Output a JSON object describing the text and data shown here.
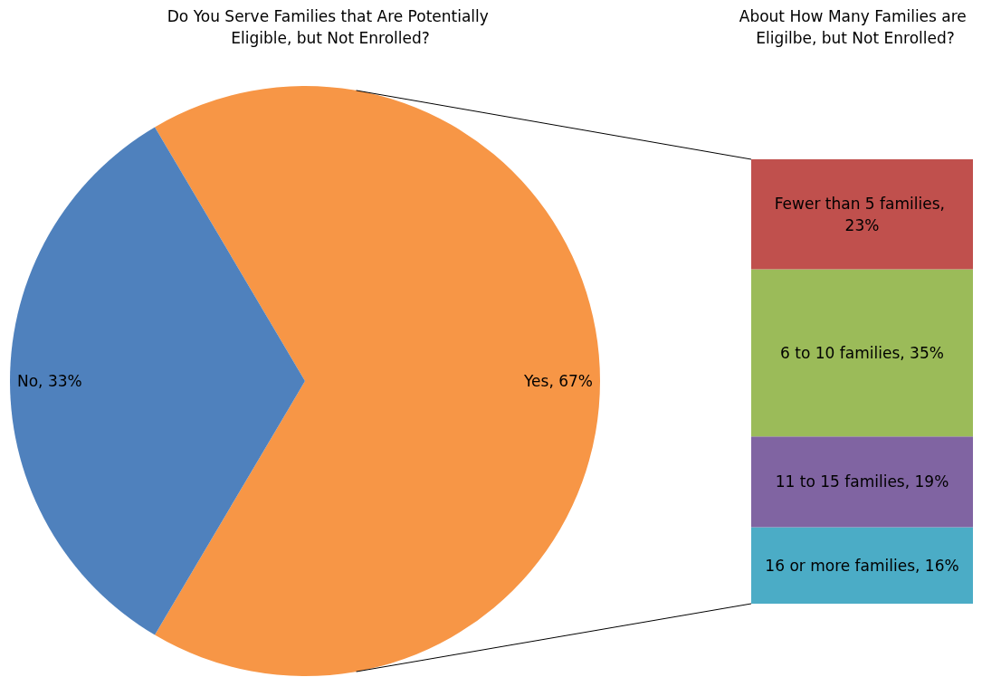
{
  "chart_data": [
    {
      "type": "pie",
      "title": "Do You Serve Families that Are Potentially Eligible, but Not Enrolled?",
      "categories": [
        "Yes",
        "No"
      ],
      "values": [
        67,
        33
      ],
      "colors": [
        "#f79646",
        "#4f81bd"
      ],
      "value_labels": [
        "67%",
        "33%"
      ]
    },
    {
      "type": "bar",
      "stacked": true,
      "title": "About How Many Families are Eligilbe, but Not Enrolled?",
      "categories": [
        null
      ],
      "series": [
        {
          "color": "#4bacc6",
          "values": [
            16
          ],
          "value_labels": [
            "16 or more families, 16%"
          ]
        },
        {
          "color": "#8064a2",
          "values": [
            19
          ],
          "value_labels": [
            "11 to 15 families, 19%"
          ]
        },
        {
          "color": "#9bbb59",
          "values": [
            35
          ],
          "value_labels": [
            "6 to 10 families, 35%"
          ]
        },
        {
          "color": "#c0504d",
          "values": [
            23
          ],
          "value_labels": [
            "Fewer than 5 families, 23%"
          ]
        }
      ]
    }
  ]
}
